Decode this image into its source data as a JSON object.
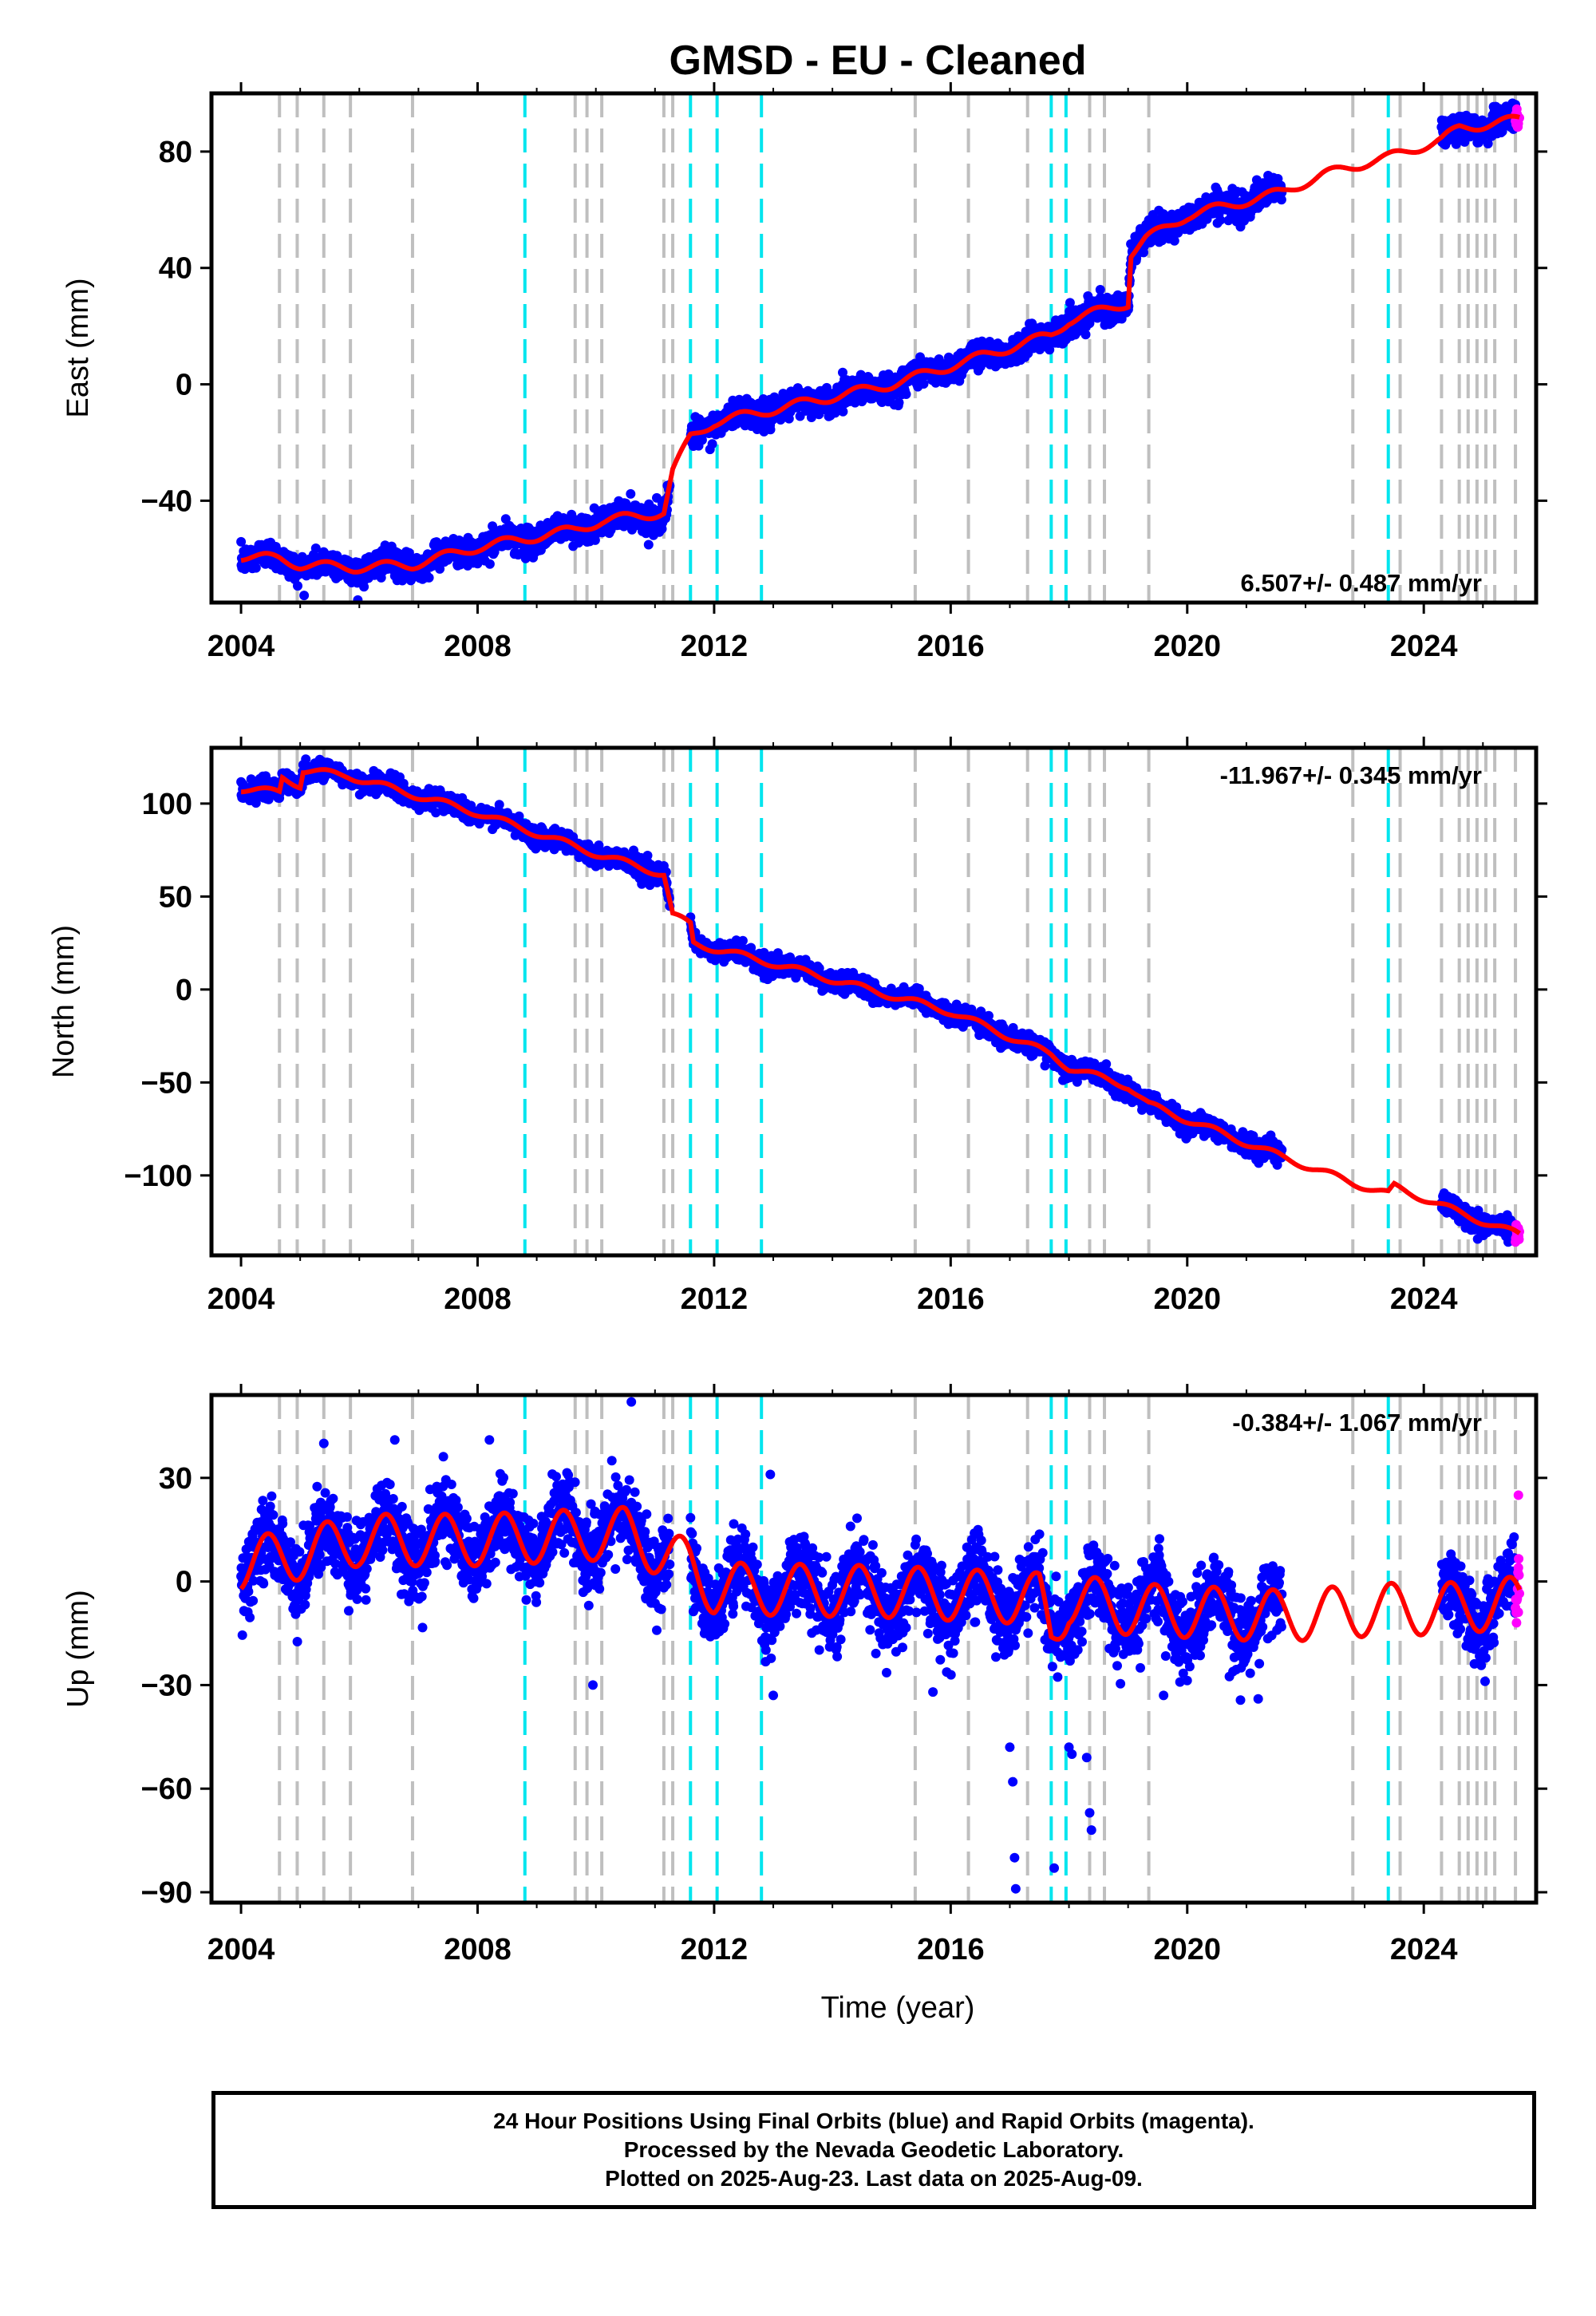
{
  "title": "GMSD  - EU - Cleaned",
  "caption": {
    "line1": "24 Hour Positions Using Final Orbits (blue) and Rapid Orbits (magenta).",
    "line2": "Processed by the Nevada Geodetic Laboratory.",
    "line3": "Plotted on 2025-Aug-23. Last data on 2025-Aug-09."
  },
  "colors": {
    "final_orbits": "#0000ff",
    "rapid_orbits": "#ff00ff",
    "model_fit": "#ff0000",
    "equipment_change_lines": "#bfbfbf",
    "earthquake_lines": "#00e5ee"
  },
  "chart_data": [
    {
      "type": "scatter",
      "ylabel": "East (mm)",
      "xlabel": "",
      "xlim": [
        2003.5,
        2025.9
      ],
      "ylim": [
        -75,
        100
      ],
      "xticks": [
        2004,
        2008,
        2012,
        2016,
        2020,
        2024
      ],
      "xtick_labels": [
        "2004",
        "2008",
        "2012",
        "2016",
        "2020",
        "2024"
      ],
      "yticks": [
        -40,
        0,
        40,
        80
      ],
      "ytick_labels": [
        "−40",
        "0",
        "40",
        "80"
      ],
      "rate_label": "6.507+/- 0.487 mm/yr",
      "rate_position": "bottom-right",
      "grey_event_lines": [
        2004.65,
        2004.95,
        2005.4,
        2005.85,
        2006.9,
        2009.65,
        2009.85,
        2010.1,
        2011.15,
        2011.3,
        2015.4,
        2016.3,
        2017.3,
        2018.35,
        2018.6,
        2019.35,
        2022.8,
        2023.6,
        2024.3,
        2024.6,
        2024.75,
        2024.9,
        2025.05,
        2025.2,
        2025.55
      ],
      "cyan_event_lines": [
        2008.8,
        2011.6,
        2012.05,
        2012.8,
        2017.7,
        2017.95,
        2023.4
      ],
      "series": [
        {
          "name": "Final Orbits",
          "style": "dots",
          "color": "#0000ff",
          "segments": [
            [
              2004.0,
              2011.25
            ],
            [
              2011.6,
              2021.6
            ],
            [
              2024.3,
              2025.55
            ]
          ],
          "noise": 2.3
        },
        {
          "name": "Rapid Orbits",
          "style": "dots",
          "color": "#ff00ff",
          "segments": [
            [
              2025.55,
              2025.62
            ]
          ],
          "noise": 2.0
        },
        {
          "name": "Model",
          "style": "line",
          "color": "#ff0000"
        }
      ],
      "model_knots": [
        [
          2004.0,
          -59
        ],
        [
          2004.65,
          -60
        ],
        [
          2005.0,
          -62
        ],
        [
          2005.9,
          -63
        ],
        [
          2006.9,
          -62
        ],
        [
          2008.0,
          -56
        ],
        [
          2009.65,
          -50
        ],
        [
          2010.1,
          -47
        ],
        [
          2011.15,
          -44
        ],
        [
          2011.3,
          -30
        ],
        [
          2011.6,
          -18
        ],
        [
          2012.0,
          -13
        ],
        [
          2015.0,
          0
        ],
        [
          2017.7,
          17
        ],
        [
          2018.0,
          22
        ],
        [
          2019.0,
          28
        ],
        [
          2019.05,
          45
        ],
        [
          2019.3,
          50
        ],
        [
          2020.0,
          58
        ],
        [
          2021.6,
          66
        ],
        [
          2022.3,
          72
        ],
        [
          2023.0,
          76
        ],
        [
          2023.4,
          78
        ],
        [
          2024.3,
          84
        ],
        [
          2024.6,
          88
        ],
        [
          2025.62,
          91
        ]
      ],
      "model_seasonal_amp": 1.6,
      "offsets": [
        [
          2004.65,
          -3
        ],
        [
          2005.0,
          4
        ],
        [
          2005.4,
          -3
        ],
        [
          2006.9,
          2
        ],
        [
          2011.15,
          6
        ],
        [
          2011.3,
          8
        ],
        [
          2011.6,
          10
        ],
        [
          2017.7,
          2
        ],
        [
          2019.0,
          17
        ],
        [
          2024.6,
          3
        ]
      ]
    },
    {
      "type": "scatter",
      "ylabel": "North (mm)",
      "xlabel": "",
      "xlim": [
        2003.5,
        2025.9
      ],
      "ylim": [
        -143,
        130
      ],
      "xticks": [
        2004,
        2008,
        2012,
        2016,
        2020,
        2024
      ],
      "xtick_labels": [
        "2004",
        "2008",
        "2012",
        "2016",
        "2020",
        "2024"
      ],
      "yticks": [
        -100,
        -50,
        0,
        50,
        100
      ],
      "ytick_labels": [
        "−100",
        "−50",
        "0",
        "50",
        "100"
      ],
      "rate_label": "-11.967+/- 0.345 mm/yr",
      "rate_position": "top-right",
      "grey_event_lines": [
        2004.65,
        2004.95,
        2005.4,
        2005.85,
        2006.9,
        2009.65,
        2009.85,
        2010.1,
        2011.15,
        2011.3,
        2015.4,
        2016.3,
        2017.3,
        2018.35,
        2018.6,
        2019.35,
        2022.8,
        2023.6,
        2024.3,
        2024.6,
        2024.75,
        2024.9,
        2025.05,
        2025.2,
        2025.55
      ],
      "cyan_event_lines": [
        2008.8,
        2011.6,
        2012.05,
        2012.8,
        2017.7,
        2017.95,
        2023.4
      ],
      "series": [
        {
          "name": "Final Orbits",
          "style": "dots",
          "color": "#0000ff",
          "segments": [
            [
              2004.0,
              2011.25
            ],
            [
              2011.6,
              2021.6
            ],
            [
              2024.3,
              2025.55
            ]
          ],
          "noise": 2.5
        },
        {
          "name": "Rapid Orbits",
          "style": "dots",
          "color": "#ff00ff",
          "segments": [
            [
              2025.55,
              2025.62
            ]
          ],
          "noise": 2.5
        },
        {
          "name": "Model",
          "style": "line",
          "color": "#ff0000"
        }
      ],
      "model_knots": [
        [
          2004.0,
          108
        ],
        [
          2004.65,
          106
        ],
        [
          2004.7,
          114
        ],
        [
          2005.0,
          110
        ],
        [
          2005.05,
          118
        ],
        [
          2005.8,
          115
        ],
        [
          2007.0,
          104
        ],
        [
          2008.0,
          95
        ],
        [
          2009.0,
          84
        ],
        [
          2010.1,
          72
        ],
        [
          2011.15,
          62
        ],
        [
          2011.3,
          40
        ],
        [
          2011.6,
          35
        ],
        [
          2011.65,
          25
        ],
        [
          2012.0,
          22
        ],
        [
          2013.0,
          14
        ],
        [
          2016.0,
          -12
        ],
        [
          2017.7,
          -35
        ],
        [
          2018.0,
          -42
        ],
        [
          2019.0,
          -52
        ],
        [
          2019.35,
          -62
        ],
        [
          2021.6,
          -90
        ],
        [
          2022.8,
          -104
        ],
        [
          2023.4,
          -110
        ],
        [
          2023.5,
          -106
        ],
        [
          2024.6,
          -120
        ],
        [
          2025.62,
          -132
        ]
      ],
      "model_seasonal_amp": 1.8,
      "offsets": [
        [
          2004.65,
          6
        ],
        [
          2005.0,
          8
        ],
        [
          2011.3,
          -18
        ],
        [
          2011.6,
          -8
        ],
        [
          2019.35,
          -7
        ]
      ]
    },
    {
      "type": "scatter",
      "ylabel": "Up (mm)",
      "xlabel": "Time (year)",
      "xlim": [
        2003.5,
        2025.9
      ],
      "ylim": [
        -93,
        54
      ],
      "xticks": [
        2004,
        2008,
        2012,
        2016,
        2020,
        2024
      ],
      "xtick_labels": [
        "2004",
        "2008",
        "2012",
        "2016",
        "2020",
        "2024"
      ],
      "yticks": [
        -90,
        -60,
        -30,
        0,
        30
      ],
      "ytick_labels": [
        "−90",
        "−60",
        "−30",
        "0",
        "30"
      ],
      "rate_label": "-0.384+/- 1.067 mm/yr",
      "rate_position": "top-right",
      "grey_event_lines": [
        2004.65,
        2004.95,
        2005.4,
        2005.85,
        2006.9,
        2009.65,
        2009.85,
        2010.1,
        2011.15,
        2011.3,
        2015.4,
        2016.3,
        2017.3,
        2018.35,
        2018.6,
        2019.35,
        2022.8,
        2023.6,
        2024.3,
        2024.6,
        2024.75,
        2024.9,
        2025.05,
        2025.2,
        2025.55
      ],
      "cyan_event_lines": [
        2008.8,
        2011.6,
        2012.05,
        2012.8,
        2017.7,
        2017.95,
        2023.4
      ],
      "series": [
        {
          "name": "Final Orbits",
          "style": "dots",
          "color": "#0000ff",
          "segments": [
            [
              2004.0,
              2011.25
            ],
            [
              2011.6,
              2021.6
            ],
            [
              2024.3,
              2025.55
            ]
          ],
          "noise": 5.5
        },
        {
          "name": "Rapid Orbits",
          "style": "dots",
          "color": "#ff00ff",
          "segments": [
            [
              2025.55,
              2025.62
            ]
          ],
          "noise": 6.0
        },
        {
          "name": "Model",
          "style": "line",
          "color": "#ff0000"
        }
      ],
      "model_knots": [
        [
          2004.0,
          5
        ],
        [
          2005.0,
          8
        ],
        [
          2006.0,
          12
        ],
        [
          2008.0,
          12
        ],
        [
          2010.5,
          14
        ],
        [
          2011.3,
          7
        ],
        [
          2011.6,
          4
        ],
        [
          2012.0,
          -2
        ],
        [
          2015.0,
          -3
        ],
        [
          2017.5,
          -5
        ],
        [
          2017.7,
          -16
        ],
        [
          2018.0,
          -5
        ],
        [
          2019.0,
          -8
        ],
        [
          2021.6,
          -10
        ],
        [
          2023.4,
          -8
        ],
        [
          2024.3,
          -8
        ],
        [
          2025.62,
          -6
        ]
      ],
      "model_seasonal_amp": 7.5,
      "outliers": [
        [
          2009.95,
          -30
        ],
        [
          2017.0,
          -48
        ],
        [
          2017.05,
          -58
        ],
        [
          2017.08,
          -80
        ],
        [
          2017.1,
          -89
        ],
        [
          2017.75,
          -83
        ],
        [
          2018.05,
          -50
        ],
        [
          2018.3,
          -51
        ],
        [
          2018.35,
          -67
        ],
        [
          2018.38,
          -72
        ],
        [
          2013.0,
          -33
        ],
        [
          2018.0,
          -48
        ],
        [
          2012.95,
          31
        ],
        [
          2010.6,
          52
        ],
        [
          2006.6,
          41
        ],
        [
          2005.4,
          40
        ],
        [
          2008.2,
          41
        ],
        [
          2019.6,
          -33
        ],
        [
          2021.2,
          -34
        ],
        [
          2015.7,
          -32
        ],
        [
          2025.6,
          25
        ],
        [
          2025.58,
          -5
        ],
        [
          2025.6,
          4
        ]
      ]
    }
  ]
}
